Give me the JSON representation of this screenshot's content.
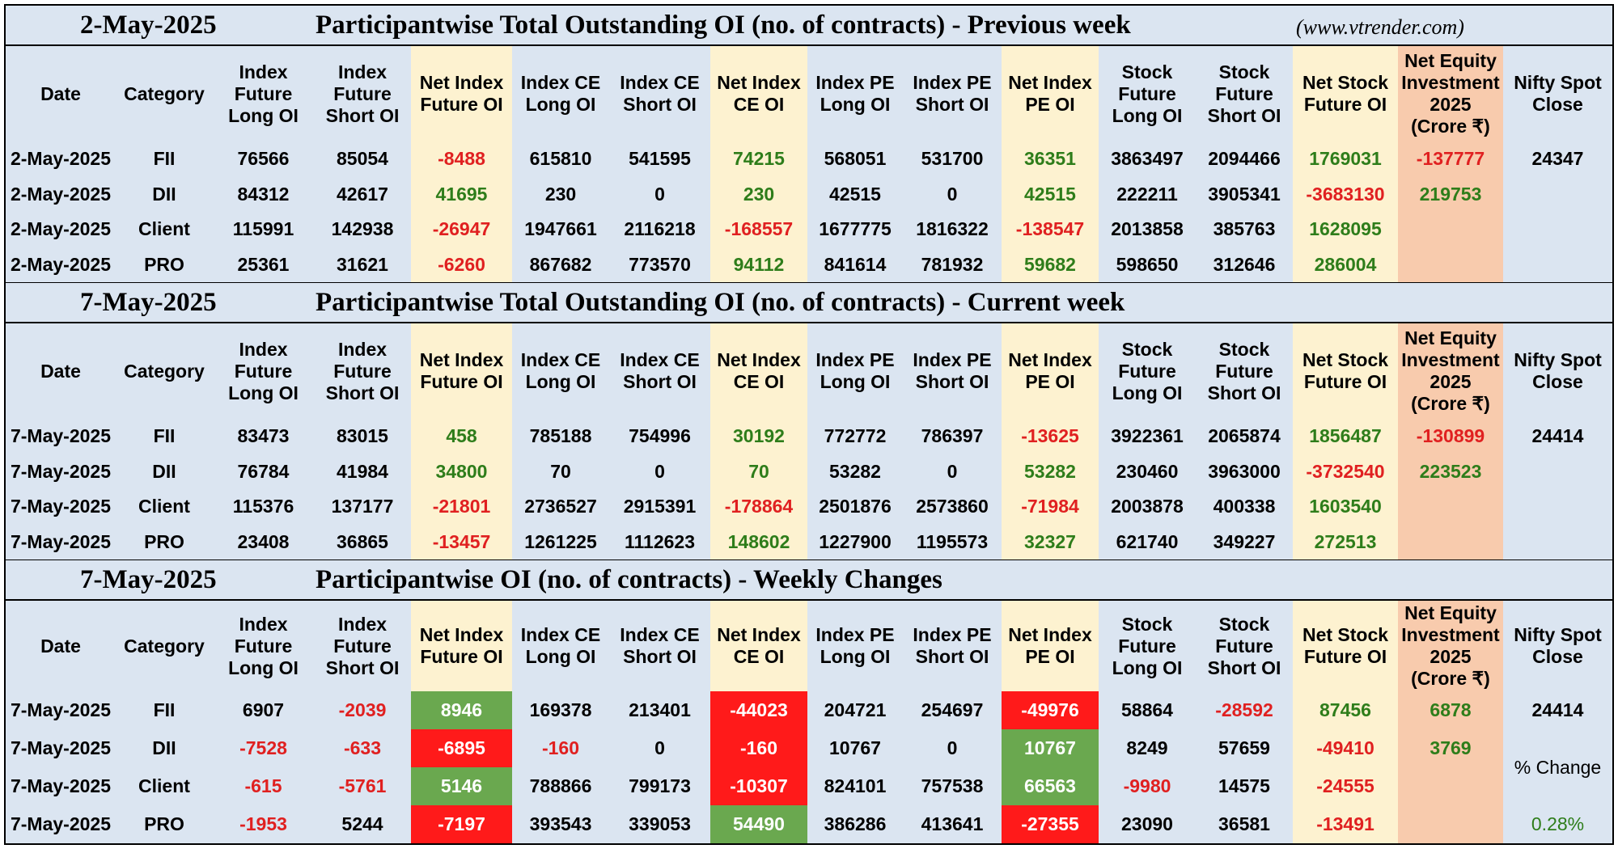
{
  "headers": {
    "date": "Date",
    "category": "Category",
    "idx_fut_long": [
      "Index",
      "Future",
      "Long OI"
    ],
    "idx_fut_short": [
      "Index",
      "Future",
      "Short OI"
    ],
    "net_idx_fut": [
      "Net Index",
      "Future OI"
    ],
    "idx_ce_long": [
      "Index CE",
      "Long OI"
    ],
    "idx_ce_short": [
      "Index CE",
      "Short OI"
    ],
    "net_idx_ce": [
      "Net Index",
      "CE OI"
    ],
    "idx_pe_long": [
      "Index PE",
      "Long OI"
    ],
    "idx_pe_short": [
      "Index PE",
      "Short OI"
    ],
    "net_idx_pe": [
      "Net Index",
      "PE OI"
    ],
    "stk_fut_long": [
      "Stock",
      "Future",
      "Long OI"
    ],
    "stk_fut_short": [
      "Stock",
      "Future",
      "Short OI"
    ],
    "net_stk_fut": [
      "Net Stock",
      "Future OI"
    ],
    "net_equity": [
      "Net Equity",
      "Investment",
      "2025",
      "(Crore ₹)"
    ],
    "nifty": [
      "Nifty Spot",
      "Close"
    ]
  },
  "sections": [
    {
      "date": "2-May-2025",
      "title": "Participantwise Total Outstanding OI (no. of contracts) - Previous week",
      "site": "(www.vtrender.com)",
      "rows": [
        {
          "date": "2-May-2025",
          "category": "FII",
          "v": [
            "76566",
            "85054",
            "-8488",
            "615810",
            "541595",
            "74215",
            "568051",
            "531700",
            "36351",
            "3863497",
            "2094466",
            "1769031",
            "-137777"
          ]
        },
        {
          "date": "2-May-2025",
          "category": "DII",
          "v": [
            "84312",
            "42617",
            "41695",
            "230",
            "0",
            "230",
            "42515",
            "0",
            "42515",
            "222211",
            "3905341",
            "-3683130",
            "219753"
          ]
        },
        {
          "date": "2-May-2025",
          "category": "Client",
          "v": [
            "115991",
            "142938",
            "-26947",
            "1947661",
            "2116218",
            "-168557",
            "1677775",
            "1816322",
            "-138547",
            "2013858",
            "385763",
            "1628095",
            ""
          ]
        },
        {
          "date": "2-May-2025",
          "category": "PRO",
          "v": [
            "25361",
            "31621",
            "-6260",
            "867682",
            "773570",
            "94112",
            "841614",
            "781932",
            "59682",
            "598650",
            "312646",
            "286004",
            ""
          ]
        }
      ],
      "nifty": [
        "24347",
        "",
        "",
        ""
      ]
    },
    {
      "date": "7-May-2025",
      "title": "Participantwise Total Outstanding OI (no. of contracts) - Current week",
      "site": "",
      "rows": [
        {
          "date": "7-May-2025",
          "category": "FII",
          "v": [
            "83473",
            "83015",
            "458",
            "785188",
            "754996",
            "30192",
            "772772",
            "786397",
            "-13625",
            "3922361",
            "2065874",
            "1856487",
            "-130899"
          ]
        },
        {
          "date": "7-May-2025",
          "category": "DII",
          "v": [
            "76784",
            "41984",
            "34800",
            "70",
            "0",
            "70",
            "53282",
            "0",
            "53282",
            "230460",
            "3963000",
            "-3732540",
            "223523"
          ]
        },
        {
          "date": "7-May-2025",
          "category": "Client",
          "v": [
            "115376",
            "137177",
            "-21801",
            "2736527",
            "2915391",
            "-178864",
            "2501876",
            "2573860",
            "-71984",
            "2003878",
            "400338",
            "1603540",
            ""
          ]
        },
        {
          "date": "7-May-2025",
          "category": "PRO",
          "v": [
            "23408",
            "36865",
            "-13457",
            "1261225",
            "1112623",
            "148602",
            "1227900",
            "1195573",
            "32327",
            "621740",
            "349227",
            "272513",
            ""
          ]
        }
      ],
      "nifty": [
        "24414",
        "",
        "",
        ""
      ]
    },
    {
      "date": "7-May-2025",
      "title": "Participantwise OI (no. of contracts) - Weekly Changes",
      "site": "",
      "rows": [
        {
          "date": "7-May-2025",
          "category": "FII",
          "v": [
            "6907",
            "-2039",
            "8946",
            "169378",
            "213401",
            "-44023",
            "204721",
            "254697",
            "-49976",
            "58864",
            "-28592",
            "87456",
            "6878"
          ]
        },
        {
          "date": "7-May-2025",
          "category": "DII",
          "v": [
            "-7528",
            "-633",
            "-6895",
            "-160",
            "0",
            "-160",
            "10767",
            "0",
            "10767",
            "8249",
            "57659",
            "-49410",
            "3769"
          ]
        },
        {
          "date": "7-May-2025",
          "category": "Client",
          "v": [
            "-615",
            "-5761",
            "5146",
            "788866",
            "799173",
            "-10307",
            "824101",
            "757538",
            "66563",
            "-9980",
            "14575",
            "-24555",
            ""
          ]
        },
        {
          "date": "7-May-2025",
          "category": "PRO",
          "v": [
            "-1953",
            "5244",
            "-7197",
            "393543",
            "339053",
            "54490",
            "386286",
            "413641",
            "-27355",
            "23090",
            "36581",
            "-13491",
            ""
          ]
        }
      ],
      "nifty": [
        "24414",
        "% Change",
        "0.28%"
      ]
    }
  ],
  "colors": {
    "header_bg": "#dbe5f1",
    "highlight_col": "#fdf2d0",
    "equity_col": "#f8cbad",
    "positive": "#2e7d1a",
    "negative": "#e02020",
    "cell_green": "#6aa84f",
    "cell_red": "#ff1a1a"
  }
}
